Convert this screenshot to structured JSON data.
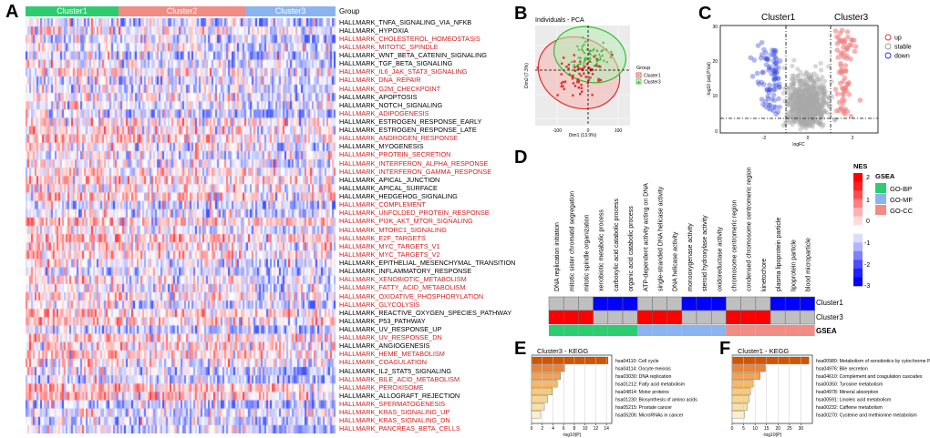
{
  "panels": {
    "A": "A",
    "B": "B",
    "C": "C",
    "D": "D",
    "E": "E",
    "F": "F"
  },
  "heatmap": {
    "clusters": [
      {
        "name": "Cluster1",
        "color": "#2ecc71"
      },
      {
        "name": "Cluster2",
        "color": "#f08c84"
      },
      {
        "name": "Cluster3",
        "color": "#8ab4f0"
      }
    ],
    "group_label": "Group",
    "pathways": [
      {
        "name": "HALLMARK_TNFA_SIGNALING_VIA_NFKB",
        "red": false
      },
      {
        "name": "HALLMARK_HYPOXIA",
        "red": false
      },
      {
        "name": "HALLMARK_CHOLESTEROL_HOMEOSTASIS",
        "red": true
      },
      {
        "name": "HALLMARK_MITOTIC_SPINDLE",
        "red": true
      },
      {
        "name": "HALLMARK_WNT_BETA_CATENIN_SIGNALING",
        "red": false
      },
      {
        "name": "HALLMARK_TGF_BETA_SIGNALING",
        "red": false
      },
      {
        "name": "HALLMARK_IL6_JAK_STAT3_SIGNALING",
        "red": true
      },
      {
        "name": "HALLMARK_DNA_REPAIR",
        "red": true
      },
      {
        "name": "HALLMARK_G2M_CHECKPOINT",
        "red": true
      },
      {
        "name": "HALLMARK_APOPTOSIS",
        "red": false
      },
      {
        "name": "HALLMARK_NOTCH_SIGNALING",
        "red": false
      },
      {
        "name": "HALLMARK_ADIPOGENESIS",
        "red": true
      },
      {
        "name": "HALLMARK_ESTROGEN_RESPONSE_EARLY",
        "red": false
      },
      {
        "name": "HALLMARK_ESTROGEN_RESPONSE_LATE",
        "red": false
      },
      {
        "name": "HALLMARK_ANDROGEN_RESPONSE",
        "red": true
      },
      {
        "name": "HALLMARK_MYOGENESIS",
        "red": false
      },
      {
        "name": "HALLMARK_PROTEIN_SECRETION",
        "red": true
      },
      {
        "name": "HALLMARK_INTERFERON_ALPHA_RESPONSE",
        "red": true
      },
      {
        "name": "HALLMARK_INTERFERON_GAMMA_RESPONSE",
        "red": true
      },
      {
        "name": "HALLMARK_APICAL_JUNCTION",
        "red": false
      },
      {
        "name": "HALLMARK_APICAL_SURFACE",
        "red": false
      },
      {
        "name": "HALLMARK_HEDGEHOG_SIGNALING",
        "red": false
      },
      {
        "name": "HALLMARK_COMPLEMENT",
        "red": true
      },
      {
        "name": "HALLMARK_UNFOLDED_PROTEIN_RESPONSE",
        "red": true
      },
      {
        "name": "HALLMARK_PI3K_AKT_MTOR_SIGNALING",
        "red": true
      },
      {
        "name": "HALLMARK_MTORC1_SIGNALING",
        "red": true
      },
      {
        "name": "HALLMARK_E2F_TARGETS",
        "red": true
      },
      {
        "name": "HALLMARK_MYC_TARGETS_V1",
        "red": true
      },
      {
        "name": "HALLMARK_MYC_TARGETS_V2",
        "red": true
      },
      {
        "name": "HALLMARK_EPITHELIAL_MESENCHYMAL_TRANSITION",
        "red": false
      },
      {
        "name": "HALLMARK_INFLAMMATORY_RESPONSE",
        "red": false
      },
      {
        "name": "HALLMARK_XENOBIOTIC_METABOLISM",
        "red": true
      },
      {
        "name": "HALLMARK_FATTY_ACID_METABOLISM",
        "red": true
      },
      {
        "name": "HALLMARK_OXIDATIVE_PHOSPHORYLATION",
        "red": true
      },
      {
        "name": "HALLMARK_GLYCOLYSIS",
        "red": true
      },
      {
        "name": "HALLMARK_REACTIVE_OXYGEN_SPECIES_PATHWAY",
        "red": false
      },
      {
        "name": "HALLMARK_P53_PATHWAY",
        "red": false
      },
      {
        "name": "HALLMARK_UV_RESPONSE_UP",
        "red": false
      },
      {
        "name": "HALLMARK_UV_RESPONSE_DN",
        "red": true
      },
      {
        "name": "HALLMARK_ANGIOGENESIS",
        "red": false
      },
      {
        "name": "HALLMARK_HEME_METABOLISM",
        "red": true
      },
      {
        "name": "HALLMARK_COAGULATION",
        "red": true
      },
      {
        "name": "HALLMARK_IL2_STAT5_SIGNALING",
        "red": false
      },
      {
        "name": "HALLMARK_BILE_ACID_METABOLISM",
        "red": true
      },
      {
        "name": "HALLMARK_PEROXISOME",
        "red": true
      },
      {
        "name": "HALLMARK_ALLOGRAFT_REJECTION",
        "red": false
      },
      {
        "name": "HALLMARK_SPERMATOGENESIS",
        "red": true
      },
      {
        "name": "HALLMARK_KRAS_SIGNALING_UP",
        "red": true
      },
      {
        "name": "HALLMARK_KRAS_SIGNALING_DN",
        "red": true
      },
      {
        "name": "HALLMARK_PANCREAS_BETA_CELLS",
        "red": true
      }
    ]
  },
  "pca": {
    "title": "Individuals - PCA",
    "xlabel": "Dim1 (13.9%)",
    "ylabel": "Dim2 (7.3%)",
    "legend_title": "Group",
    "legend": [
      {
        "name": "Cluster1",
        "color": "#e03030"
      },
      {
        "name": "Cluster3",
        "color": "#2ebd2e"
      }
    ],
    "xticks": [
      "-100",
      "0",
      "100"
    ]
  },
  "volcano": {
    "labels": {
      "left": "Cluster1",
      "right": "Cluster3"
    },
    "xlabel": "logFC",
    "ylabel": "-log10 (adj.P.Val)",
    "yticks": [
      "0",
      "10",
      "20",
      "30"
    ],
    "xticks": [
      "-2",
      "0",
      "2"
    ],
    "legend": [
      {
        "name": "up",
        "color": "#e03030"
      },
      {
        "name": "stable",
        "color": "#999999"
      },
      {
        "name": "down",
        "color": "#2030c8"
      }
    ]
  },
  "gsea": {
    "terms": [
      {
        "name": "DNA replication initiation",
        "c1": 0.1,
        "c3": 2.3,
        "cat": "GO-BP"
      },
      {
        "name": "mitotic sister chromatid segregation",
        "c1": 0.1,
        "c3": 2.3,
        "cat": "GO-BP"
      },
      {
        "name": "mitotic spindle organization",
        "c1": 0.1,
        "c3": 2.3,
        "cat": "GO-BP"
      },
      {
        "name": "xenobiotic metabolic process",
        "c1": -2.8,
        "c3": 0.1,
        "cat": "GO-BP"
      },
      {
        "name": "carboxylic acid catabolic process",
        "c1": -2.8,
        "c3": 0.1,
        "cat": "GO-BP"
      },
      {
        "name": "organic acid catabolic process",
        "c1": -2.8,
        "c3": 0.1,
        "cat": "GO-BP"
      },
      {
        "name": "ATP-dependent activity acting on DNA",
        "c1": 0.1,
        "c3": 2.3,
        "cat": "GO-MF"
      },
      {
        "name": "single-stranded DNA helicase activity",
        "c1": 0.1,
        "c3": 2.3,
        "cat": "GO-MF"
      },
      {
        "name": "DNA helicase activity",
        "c1": 0.1,
        "c3": 2.3,
        "cat": "GO-MF"
      },
      {
        "name": "monooxygenase activity",
        "c1": -2.8,
        "c3": 0.1,
        "cat": "GO-MF"
      },
      {
        "name": "steroid hydroxylase activity",
        "c1": -2.8,
        "c3": 0.1,
        "cat": "GO-MF"
      },
      {
        "name": "oxidoreductase activity",
        "c1": -2.8,
        "c3": 0.1,
        "cat": "GO-MF"
      },
      {
        "name": "chromosome centromeric region",
        "c1": 0.1,
        "c3": 2.3,
        "cat": "GO-CC"
      },
      {
        "name": "condensed chromosome centromeric region",
        "c1": 0.1,
        "c3": 2.3,
        "cat": "GO-CC"
      },
      {
        "name": "kinetochore",
        "c1": 0.1,
        "c3": 2.3,
        "cat": "GO-CC"
      },
      {
        "name": "plasma lipoprotein particle",
        "c1": -2.8,
        "c3": 0.1,
        "cat": "GO-CC"
      },
      {
        "name": "lipoprotein particle",
        "c1": -2.8,
        "c3": 0.1,
        "cat": "GO-CC"
      },
      {
        "name": "blood microparticle",
        "c1": -2.8,
        "c3": 0.1,
        "cat": "GO-CC"
      }
    ],
    "rows": [
      "Cluster1",
      "Cluster3",
      "GSEA"
    ],
    "nes_title": "NES",
    "nes_ticks": [
      "2",
      "1",
      "0",
      "-1",
      "-2",
      "-3"
    ],
    "legend_title": "GSEA",
    "categories": [
      {
        "name": "GO-BP",
        "color": "#2ecc71"
      },
      {
        "name": "GO-MF",
        "color": "#8ab4f0"
      },
      {
        "name": "GO-CC",
        "color": "#f08c84"
      }
    ]
  },
  "chart_data": [
    {
      "type": "bar",
      "title": "Cluster3 - KEGG",
      "xlabel": "-log10(P)",
      "categories": [
        "hsa04110: Cell cycle",
        "hsa04114: Oocyte meiosis",
        "hsa03030: DNA replication",
        "hsa01212: Fatty acid metabolism",
        "hsa04814: Motor proteins",
        "hsa01230: Biosynthesis of amino acids",
        "hsa05215: Prostate cancer",
        "hsa05206: MicroRNAs in cancer"
      ],
      "values": [
        14.3,
        6.2,
        5.4,
        4.8,
        3.9,
        3.0,
        2.4,
        1.7
      ],
      "xlim": [
        0,
        15
      ],
      "xticks": [
        "0",
        "2",
        "4",
        "6",
        "8",
        "10",
        "12",
        "14"
      ]
    },
    {
      "type": "bar",
      "title": "Cluster1 - KEGG",
      "xlabel": "-log10(P)",
      "categories": [
        "hsa00980: Metabolism of xenobiotics by cytochrome P450",
        "hsa04976: Bile secretion",
        "hsa04610: Complement and coagulation cascades",
        "hsa00350: Tyrosine metabolism",
        "hsa04978: Mineral absorption",
        "hsa00591: Linoleic acid metabolism",
        "hsa00232: Caffeine metabolism",
        "hsa00270: Cysteine and methionine metabolism"
      ],
      "values": [
        33.5,
        14.5,
        12.2,
        9.2,
        8.0,
        7.4,
        6.6,
        5.4
      ],
      "xlim": [
        0,
        35
      ],
      "xticks": [
        "0",
        "5",
        "10",
        "15",
        "20",
        "25",
        "30"
      ]
    }
  ]
}
